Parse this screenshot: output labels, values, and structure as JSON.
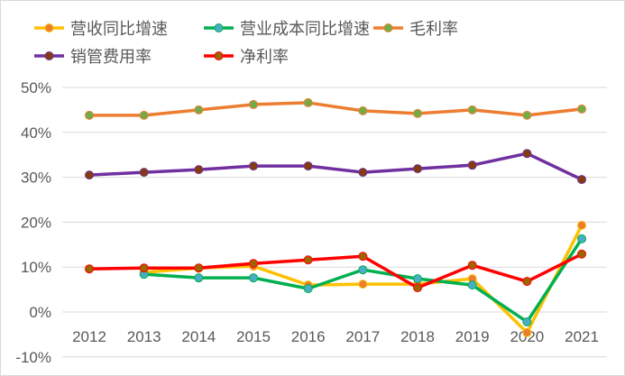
{
  "chart_data": {
    "type": "line",
    "title": "",
    "categories": [
      "2012",
      "2013",
      "2014",
      "2015",
      "2016",
      "2017",
      "2018",
      "2019",
      "2020",
      "2021"
    ],
    "ylim": [
      -10,
      50
    ],
    "yticks": [
      "-10%",
      "0%",
      "10%",
      "20%",
      "30%",
      "40%",
      "50%"
    ],
    "grid": true,
    "legend_position": "top",
    "series": [
      {
        "name": "营收同比增速",
        "color": "#FFC000",
        "marker": "#ED7D31",
        "values": [
          null,
          8.8,
          9.8,
          10.2,
          6.0,
          6.2,
          6.2,
          7.4,
          -4.6,
          19.3
        ]
      },
      {
        "name": "营业成本同比增速",
        "color": "#00B050",
        "marker": "#4BACC6",
        "values": [
          null,
          8.4,
          7.6,
          7.6,
          5.2,
          9.4,
          7.4,
          6.0,
          -2.2,
          16.3
        ]
      },
      {
        "name": "毛利率",
        "color": "#ED7D31",
        "marker": "#70AD47",
        "values": [
          43.8,
          43.8,
          45.0,
          46.2,
          46.6,
          44.8,
          44.2,
          45.0,
          43.8,
          45.2
        ]
      },
      {
        "name": "销管费用率",
        "color": "#7030A0",
        "marker": "#843C0C",
        "values": [
          30.5,
          31.1,
          31.7,
          32.5,
          32.5,
          31.1,
          31.9,
          32.7,
          35.3,
          29.5
        ]
      },
      {
        "name": "净利率",
        "color": "#FF0000",
        "marker": "#9C6500",
        "values": [
          9.6,
          9.8,
          9.8,
          10.8,
          11.6,
          12.4,
          5.4,
          10.4,
          6.8,
          12.9
        ]
      }
    ]
  }
}
